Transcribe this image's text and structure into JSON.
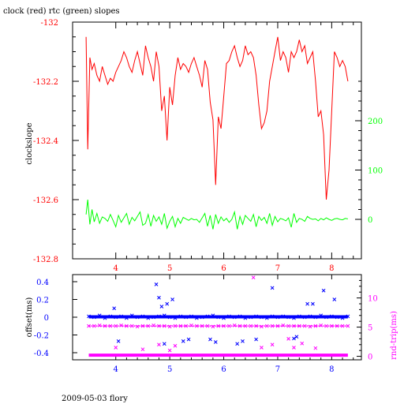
{
  "title": "clock (red) rtc (green) slopes",
  "footer": "2009-05-03 flory",
  "colors": {
    "clock": "#ff0000",
    "rtc": "#00ff00",
    "offset": "#0000ff",
    "rndtrip": "#ff00ff",
    "axis": "#000000"
  },
  "chart_data": [
    {
      "type": "line",
      "xlim": [
        3.2,
        8.55
      ],
      "x_ticks": [
        "4",
        "5",
        "6",
        "7",
        "8"
      ],
      "x_tick_values": [
        4,
        5,
        6,
        7,
        8
      ],
      "ylabel": "clockslope",
      "ylim": [
        -132.8,
        -132.0
      ],
      "y_ticks": [
        "-132",
        "-132.2",
        "-132.4",
        "-132.6",
        "-132.8"
      ],
      "y_tick_values": [
        -132.0,
        -132.2,
        -132.4,
        -132.6,
        -132.8
      ],
      "y2lim": [
        -80,
        400
      ],
      "y2_ticks": [
        "200",
        "100",
        "0"
      ],
      "y2_tick_values": [
        200,
        100,
        0
      ],
      "series": [
        {
          "name": "clock",
          "axis": "left",
          "x": [
            3.45,
            3.48,
            3.52,
            3.56,
            3.6,
            3.65,
            3.7,
            3.75,
            3.8,
            3.85,
            3.9,
            3.95,
            4.0,
            4.05,
            4.1,
            4.15,
            4.2,
            4.25,
            4.3,
            4.35,
            4.4,
            4.45,
            4.5,
            4.55,
            4.6,
            4.65,
            4.7,
            4.75,
            4.8,
            4.85,
            4.9,
            4.95,
            5.0,
            5.05,
            5.1,
            5.15,
            5.2,
            5.25,
            5.3,
            5.35,
            5.4,
            5.45,
            5.5,
            5.55,
            5.6,
            5.65,
            5.7,
            5.75,
            5.8,
            5.85,
            5.9,
            5.95,
            6.0,
            6.05,
            6.1,
            6.15,
            6.2,
            6.25,
            6.3,
            6.35,
            6.4,
            6.45,
            6.5,
            6.55,
            6.6,
            6.65,
            6.7,
            6.75,
            6.8,
            6.85,
            6.9,
            6.95,
            7.0,
            7.05,
            7.1,
            7.15,
            7.2,
            7.25,
            7.3,
            7.35,
            7.4,
            7.45,
            7.5,
            7.55,
            7.6,
            7.65,
            7.7,
            7.75,
            7.8,
            7.85,
            7.9,
            7.95,
            8.0,
            8.05,
            8.1,
            8.15,
            8.2,
            8.25,
            8.3
          ],
          "y": [
            -132.05,
            -132.43,
            -132.12,
            -132.16,
            -132.14,
            -132.18,
            -132.2,
            -132.15,
            -132.18,
            -132.21,
            -132.19,
            -132.2,
            -132.17,
            -132.15,
            -132.13,
            -132.1,
            -132.12,
            -132.15,
            -132.17,
            -132.13,
            -132.1,
            -132.14,
            -132.18,
            -132.08,
            -132.12,
            -132.15,
            -132.2,
            -132.1,
            -132.15,
            -132.3,
            -132.25,
            -132.4,
            -132.22,
            -132.28,
            -132.18,
            -132.12,
            -132.16,
            -132.14,
            -132.15,
            -132.17,
            -132.14,
            -132.12,
            -132.15,
            -132.18,
            -132.22,
            -132.13,
            -132.16,
            -132.27,
            -132.33,
            -132.55,
            -132.32,
            -132.36,
            -132.25,
            -132.14,
            -132.13,
            -132.1,
            -132.08,
            -132.12,
            -132.15,
            -132.13,
            -132.08,
            -132.11,
            -132.1,
            -132.12,
            -132.18,
            -132.28,
            -132.36,
            -132.34,
            -132.3,
            -132.2,
            -132.15,
            -132.1,
            -132.05,
            -132.13,
            -132.1,
            -132.12,
            -132.17,
            -132.1,
            -132.12,
            -132.1,
            -132.06,
            -132.1,
            -132.08,
            -132.14,
            -132.12,
            -132.1,
            -132.2,
            -132.32,
            -132.3,
            -132.38,
            -132.6,
            -132.5,
            -132.3,
            -132.1,
            -132.12,
            -132.15,
            -132.13,
            -132.15,
            -132.2
          ]
        },
        {
          "name": "rtc",
          "axis": "right",
          "x": [
            3.45,
            3.48,
            3.52,
            3.56,
            3.6,
            3.65,
            3.7,
            3.75,
            3.8,
            3.85,
            3.9,
            3.95,
            4.0,
            4.05,
            4.1,
            4.15,
            4.2,
            4.25,
            4.3,
            4.35,
            4.4,
            4.45,
            4.5,
            4.55,
            4.6,
            4.65,
            4.7,
            4.75,
            4.8,
            4.85,
            4.9,
            4.95,
            5.0,
            5.05,
            5.1,
            5.15,
            5.2,
            5.25,
            5.3,
            5.35,
            5.4,
            5.45,
            5.5,
            5.55,
            5.6,
            5.65,
            5.7,
            5.75,
            5.8,
            5.85,
            5.9,
            5.95,
            6.0,
            6.05,
            6.1,
            6.15,
            6.2,
            6.25,
            6.3,
            6.35,
            6.4,
            6.45,
            6.5,
            6.55,
            6.6,
            6.65,
            6.7,
            6.75,
            6.8,
            6.85,
            6.9,
            6.95,
            7.0,
            7.05,
            7.1,
            7.15,
            7.2,
            7.25,
            7.3,
            7.35,
            7.4,
            7.45,
            7.5,
            7.55,
            7.6,
            7.65,
            7.7,
            7.75,
            7.8,
            7.85,
            7.9,
            7.95,
            8.0,
            8.05,
            8.1,
            8.15,
            8.2,
            8.25,
            8.3
          ],
          "y": [
            10,
            40,
            -10,
            20,
            -5,
            12,
            -8,
            5,
            2,
            -4,
            10,
            -2,
            -15,
            8,
            -6,
            3,
            12,
            -10,
            4,
            -3,
            6,
            15,
            -12,
            -8,
            10,
            -14,
            8,
            -4,
            5,
            -10,
            12,
            -18,
            -4,
            6,
            -15,
            2,
            -8,
            4,
            1,
            -2,
            2,
            -1,
            0,
            -6,
            3,
            12,
            -14,
            8,
            -20,
            10,
            -8,
            5,
            -3,
            2,
            -6,
            0,
            15,
            -20,
            6,
            -10,
            8,
            2,
            -4,
            10,
            -15,
            6,
            -2,
            4,
            -8,
            12,
            -12,
            6,
            -5,
            2,
            0,
            -3,
            3,
            -16,
            12,
            -6,
            2,
            0,
            -4,
            6,
            2,
            0,
            1,
            -3,
            2,
            -1,
            3,
            0,
            -2,
            1,
            2,
            0,
            -1,
            2,
            1
          ]
        }
      ]
    },
    {
      "type": "scatter",
      "xlim": [
        3.2,
        8.55
      ],
      "x_ticks": [
        "4",
        "5",
        "6",
        "7",
        "8"
      ],
      "x_tick_values": [
        4,
        5,
        6,
        7,
        8
      ],
      "ylabel": "offset(ms)",
      "ylim": [
        -0.48,
        0.48
      ],
      "y_ticks": [
        "0.4",
        "0.2",
        "0",
        "-0.2",
        "-0.4"
      ],
      "y_tick_values": [
        0.4,
        0.2,
        0.0,
        -0.2,
        -0.4
      ],
      "y2label": "rnd-trip(ms)",
      "y2lim": [
        -0.6,
        14
      ],
      "y2_ticks": [
        "10",
        "5",
        "0"
      ],
      "y2_tick_values": [
        10,
        5,
        0
      ],
      "series": [
        {
          "name": "offset",
          "axis": "left",
          "x": [
            3.5,
            3.6,
            3.7,
            3.8,
            3.9,
            4.0,
            4.1,
            4.2,
            4.3,
            4.4,
            4.5,
            4.6,
            4.7,
            4.8,
            4.9,
            5.0,
            5.1,
            5.2,
            5.3,
            5.4,
            5.5,
            5.6,
            5.7,
            5.8,
            5.9,
            6.0,
            6.1,
            6.2,
            6.3,
            6.4,
            6.5,
            6.6,
            6.7,
            6.8,
            6.9,
            7.0,
            7.1,
            7.2,
            7.3,
            7.4,
            7.5,
            7.6,
            7.7,
            7.8,
            7.9,
            8.0,
            8.1,
            8.2,
            8.3,
            3.97,
            4.05,
            4.75,
            4.8,
            4.85,
            4.9,
            4.95,
            5.05,
            5.25,
            5.35,
            5.75,
            5.85,
            6.25,
            6.35,
            6.6,
            6.9,
            7.3,
            7.35,
            7.55,
            7.65,
            7.85,
            8.05
          ],
          "y": [
            0.01,
            0.0,
            0.02,
            -0.01,
            0.01,
            0.0,
            0.01,
            -0.01,
            0.02,
            0.0,
            0.01,
            -0.01,
            0.0,
            0.01,
            0.02,
            0.0,
            -0.01,
            0.01,
            0.0,
            0.01,
            -0.01,
            0.0,
            0.01,
            0.02,
            0.0,
            -0.01,
            0.01,
            0.0,
            0.01,
            -0.01,
            0.0,
            0.01,
            0.0,
            -0.01,
            0.01,
            0.0,
            0.01,
            0.0,
            -0.01,
            0.01,
            0.0,
            0.01,
            0.0,
            0.02,
            0.0,
            0.01,
            0.0,
            -0.01,
            0.01,
            0.1,
            -0.27,
            0.37,
            0.22,
            0.12,
            -0.3,
            0.15,
            0.2,
            -0.27,
            -0.25,
            -0.25,
            -0.28,
            -0.3,
            -0.27,
            -0.25,
            0.33,
            -0.24,
            -0.22,
            0.15,
            0.15,
            0.3,
            0.2
          ]
        },
        {
          "name": "rnd-trip",
          "axis": "right",
          "x": [
            3.5,
            3.6,
            3.7,
            3.8,
            3.9,
            4.0,
            4.1,
            4.2,
            4.3,
            4.4,
            4.5,
            4.6,
            4.7,
            4.8,
            4.9,
            5.0,
            5.1,
            5.2,
            5.3,
            5.4,
            5.5,
            5.6,
            5.7,
            5.8,
            5.9,
            6.0,
            6.1,
            6.2,
            6.3,
            6.4,
            6.5,
            6.6,
            6.7,
            6.8,
            6.9,
            7.0,
            7.1,
            7.2,
            7.3,
            7.4,
            7.5,
            7.6,
            7.7,
            7.8,
            7.9,
            8.0,
            8.1,
            8.2,
            8.3,
            4.0,
            4.5,
            4.8,
            5.0,
            5.1,
            6.55,
            7.2,
            7.3,
            7.45,
            6.7,
            6.9,
            7.7
          ],
          "y": [
            5.2,
            5.2,
            5.3,
            5.2,
            5.2,
            5.2,
            5.3,
            5.2,
            5.2,
            5.1,
            5.2,
            5.2,
            5.3,
            5.2,
            5.2,
            5.1,
            5.2,
            5.2,
            5.2,
            5.3,
            5.2,
            5.2,
            5.2,
            5.1,
            5.2,
            5.2,
            5.2,
            5.3,
            5.2,
            5.2,
            5.2,
            5.2,
            5.1,
            5.2,
            5.2,
            5.2,
            5.3,
            5.2,
            5.2,
            5.2,
            5.2,
            5.1,
            5.2,
            5.3,
            5.2,
            5.2,
            5.2,
            5.2,
            5.2,
            1.5,
            1.2,
            2.0,
            1.0,
            1.8,
            13.5,
            3.0,
            1.5,
            2.2,
            1.5,
            2.0,
            1.4
          ]
        },
        {
          "name": "rnd-trip baseline",
          "axis": "right",
          "x": [
            3.5,
            8.3
          ],
          "y": [
            0.2,
            0.2
          ]
        }
      ]
    }
  ]
}
